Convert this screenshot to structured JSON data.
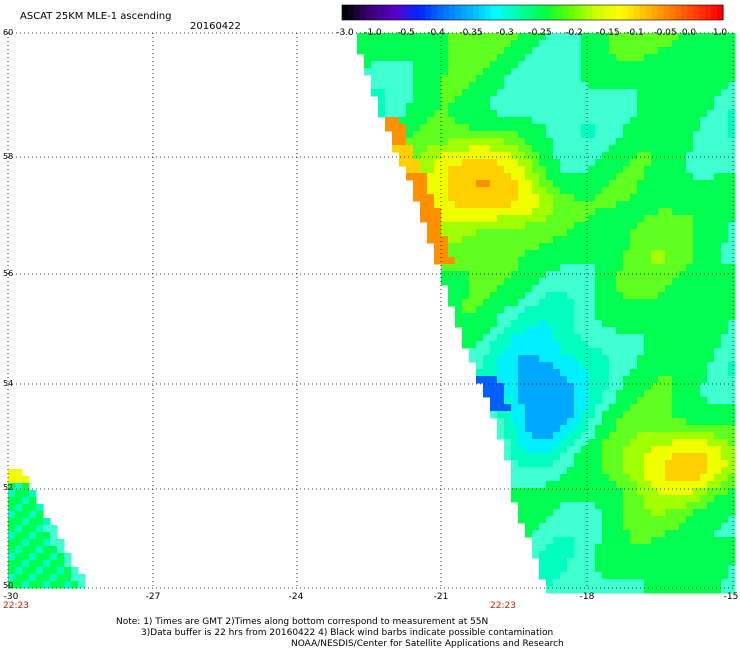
{
  "header": {
    "title": "ASCAT 25KM MLE-1 ascending",
    "date": "20160422"
  },
  "colorbar": {
    "labels": [
      "-3.0",
      "-1.0",
      "-0.5",
      "-0.4",
      "-0.35",
      "-0.3",
      "-0.25",
      "-0.2",
      "-0.15",
      "-0.1",
      "-0.05",
      "0.0",
      "1.0"
    ],
    "colors": [
      "#000000",
      "#3a0077",
      "#5a00c8",
      "#0028ff",
      "#0078ff",
      "#00b4ff",
      "#00ffff",
      "#00ffa0",
      "#00ff40",
      "#60ff00",
      "#c8ff00",
      "#ffff00",
      "#ffc000",
      "#ff8000",
      "#ff4000",
      "#ff0000"
    ]
  },
  "axes": {
    "lat_labels": [
      "60",
      "58",
      "56",
      "54",
      "52",
      "50"
    ],
    "lon_labels": [
      "-30",
      "-27",
      "-24",
      "-21",
      "-18",
      "-15"
    ],
    "time_left": "22:23",
    "time_mid": "22:23"
  },
  "notes": {
    "line1": "Note: 1) Times are GMT 2)Times along bottom correspond to measurement at 55N",
    "line2": "3)Data buffer is 22 hrs from 20160422 4) Black wind barbs indicate possible contamination",
    "line3": "NOAA/NESDIS/Center for Satellite Applications and Research"
  }
}
